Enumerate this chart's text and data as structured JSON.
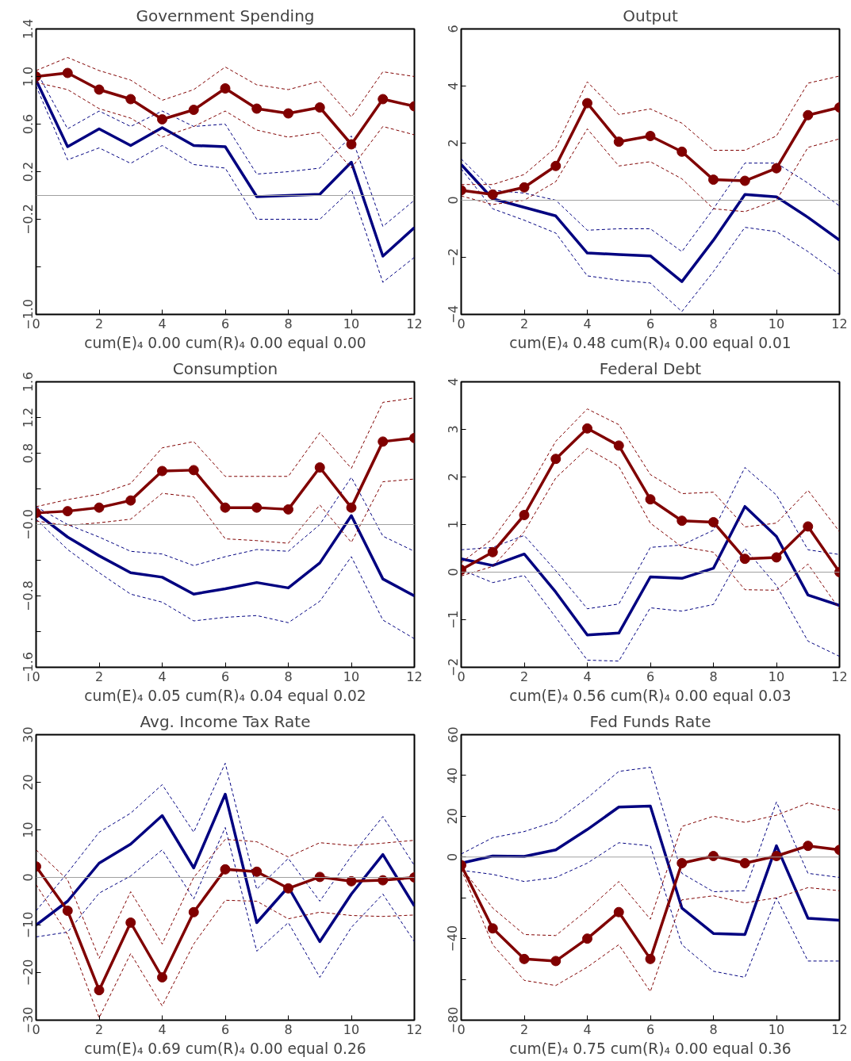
{
  "chart_data": [
    {
      "type": "line",
      "title": "Government Spending",
      "xlabel": "cum(E)₄ 0.00 cum(R)₄ 0.00 equal 0.00",
      "x": [
        0,
        1,
        2,
        3,
        4,
        5,
        6,
        7,
        8,
        9,
        10,
        11,
        12
      ],
      "xlim": [
        0,
        12
      ],
      "xticks": [
        0,
        2,
        4,
        6,
        8,
        10,
        12
      ],
      "ylim": [
        -1.0,
        1.4
      ],
      "yticks": [
        {
          "value": 1.4,
          "label": "1.4"
        },
        {
          "value": 1.0,
          "label": "1.0"
        },
        {
          "value": 0.6,
          "label": "0.6"
        },
        {
          "value": 0.2,
          "label": "0.2"
        },
        {
          "value": -0.2,
          "label": "−0.2"
        },
        {
          "value": -0.6,
          "label": null
        },
        {
          "value": -1.0,
          "label": "−1.0"
        }
      ],
      "grid": false,
      "line_style": "solid",
      "ref_lines": [
        {
          "axis": "y",
          "value": 0,
          "color": "#a0a0a0"
        }
      ],
      "series": [
        {
          "color": "#000080",
          "line_style": "dashed",
          "values": [
            0.92,
            0.3,
            0.4,
            0.27,
            0.42,
            0.26,
            0.23,
            -0.2,
            -0.2,
            -0.2,
            0.05,
            -0.73,
            -0.52
          ]
        },
        {
          "color": "#000080",
          "line_style": "dashed",
          "values": [
            1.05,
            0.56,
            0.71,
            0.58,
            0.71,
            0.58,
            0.6,
            0.18,
            0.2,
            0.23,
            0.5,
            -0.26,
            -0.04
          ]
        },
        {
          "color": "#000080",
          "marker": "none",
          "values": [
            0.97,
            0.41,
            0.56,
            0.42,
            0.57,
            0.42,
            0.41,
            -0.01,
            0.0,
            0.01,
            0.28,
            -0.51,
            -0.27
          ]
        },
        {
          "color": "#800000",
          "line_style": "dashed",
          "values": [
            0.95,
            0.89,
            0.73,
            0.65,
            0.49,
            0.58,
            0.71,
            0.55,
            0.49,
            0.53,
            0.23,
            0.58,
            0.51
          ]
        },
        {
          "color": "#800000",
          "line_style": "dashed",
          "values": [
            1.05,
            1.16,
            1.05,
            0.97,
            0.8,
            0.89,
            1.08,
            0.93,
            0.89,
            0.96,
            0.66,
            1.04,
            1.0
          ]
        },
        {
          "color": "#800000",
          "marker": "circle",
          "values": [
            1.0,
            1.03,
            0.89,
            0.81,
            0.64,
            0.72,
            0.9,
            0.73,
            0.69,
            0.74,
            0.43,
            0.81,
            0.75
          ]
        }
      ]
    },
    {
      "type": "line",
      "title": "Output",
      "xlabel": "cum(E)₄ 0.48 cum(R)₄ 0.00 equal 0.01",
      "x": [
        0,
        1,
        2,
        3,
        4,
        5,
        6,
        7,
        8,
        9,
        10,
        11,
        12
      ],
      "xlim": [
        0,
        12
      ],
      "xticks": [
        0,
        2,
        4,
        6,
        8,
        10,
        12
      ],
      "ylim": [
        -4,
        6
      ],
      "yticks": [
        {
          "value": 6,
          "label": "6"
        },
        {
          "value": 4,
          "label": "4"
        },
        {
          "value": 2,
          "label": "2"
        },
        {
          "value": 0,
          "label": "0"
        },
        {
          "value": -2,
          "label": "−2"
        },
        {
          "value": -4,
          "label": "−4"
        }
      ],
      "grid": false,
      "line_style": "solid",
      "ref_lines": [
        {
          "axis": "y",
          "value": 0,
          "color": "#a0a0a0"
        }
      ],
      "series": [
        {
          "color": "#000080",
          "line_style": "dashed",
          "values": [
            1.1,
            -0.3,
            -0.7,
            -1.15,
            -2.65,
            -2.8,
            -2.9,
            -3.9,
            -2.5,
            -0.95,
            -1.1,
            -1.8,
            -2.6
          ]
        },
        {
          "color": "#000080",
          "line_style": "dashed",
          "values": [
            1.45,
            0.35,
            0.25,
            0.0,
            -1.05,
            -1.0,
            -1.0,
            -1.8,
            -0.3,
            1.3,
            1.3,
            0.6,
            -0.2
          ]
        },
        {
          "color": "#000080",
          "marker": "none",
          "values": [
            1.25,
            0.05,
            -0.25,
            -0.55,
            -1.85,
            -1.9,
            -1.95,
            -2.85,
            -1.4,
            0.2,
            0.12,
            -0.6,
            -1.4
          ]
        },
        {
          "color": "#800000",
          "line_style": "dashed",
          "values": [
            0.15,
            -0.15,
            0.0,
            0.65,
            2.5,
            1.2,
            1.35,
            0.75,
            -0.3,
            -0.4,
            0.0,
            1.85,
            2.15
          ]
        },
        {
          "color": "#800000",
          "line_style": "dashed",
          "values": [
            0.55,
            0.55,
            0.9,
            1.85,
            4.15,
            3.0,
            3.2,
            2.7,
            1.75,
            1.75,
            2.25,
            4.1,
            4.35
          ]
        },
        {
          "color": "#800000",
          "marker": "circle",
          "values": [
            0.35,
            0.2,
            0.45,
            1.2,
            3.4,
            2.05,
            2.25,
            1.7,
            0.72,
            0.68,
            1.12,
            2.98,
            3.25
          ]
        }
      ]
    },
    {
      "type": "line",
      "title": "Consumption",
      "xlabel": "cum(E)₄ 0.05 cum(R)₄ 0.04 equal 0.02",
      "x": [
        0,
        1,
        2,
        3,
        4,
        5,
        6,
        7,
        8,
        9,
        10,
        11,
        12
      ],
      "xlim": [
        0,
        12
      ],
      "xticks": [
        0,
        2,
        4,
        6,
        8,
        10,
        12
      ],
      "ylim": [
        -1.6,
        1.6
      ],
      "yticks": [
        {
          "value": 1.6,
          "label": "1.6"
        },
        {
          "value": 1.2,
          "label": "1.2"
        },
        {
          "value": 0.8,
          "label": "0.8"
        },
        {
          "value": 0.4,
          "label": null
        },
        {
          "value": 0,
          "label": "−0.0"
        },
        {
          "value": -0.4,
          "label": null
        },
        {
          "value": -0.8,
          "label": "−0.8"
        },
        {
          "value": -1.2,
          "label": null
        },
        {
          "value": -1.6,
          "label": "−1.6"
        }
      ],
      "grid": false,
      "line_style": "solid",
      "ref_lines": [
        {
          "axis": "y",
          "value": 0,
          "color": "#a0a0a0"
        }
      ],
      "series": [
        {
          "color": "#000080",
          "line_style": "dashed",
          "values": [
            0.06,
            -0.28,
            -0.54,
            -0.78,
            -0.87,
            -1.08,
            -1.04,
            -1.02,
            -1.1,
            -0.86,
            -0.36,
            -1.07,
            -1.28
          ]
        },
        {
          "color": "#000080",
          "line_style": "dashed",
          "values": [
            0.2,
            0.0,
            -0.14,
            -0.3,
            -0.33,
            -0.46,
            -0.36,
            -0.28,
            -0.3,
            0.0,
            0.53,
            -0.13,
            -0.3
          ]
        },
        {
          "color": "#000080",
          "marker": "none",
          "values": [
            0.13,
            -0.14,
            -0.35,
            -0.54,
            -0.59,
            -0.78,
            -0.72,
            -0.65,
            -0.71,
            -0.43,
            0.1,
            -0.61,
            -0.8
          ]
        },
        {
          "color": "#800000",
          "line_style": "dashed",
          "values": [
            0.04,
            -0.01,
            0.02,
            0.06,
            0.35,
            0.31,
            -0.16,
            -0.18,
            -0.21,
            0.22,
            -0.2,
            0.48,
            0.51
          ]
        },
        {
          "color": "#800000",
          "line_style": "dashed",
          "values": [
            0.2,
            0.28,
            0.34,
            0.46,
            0.86,
            0.93,
            0.54,
            0.54,
            0.54,
            1.03,
            0.63,
            1.37,
            1.42
          ]
        },
        {
          "color": "#800000",
          "marker": "circle",
          "values": [
            0.13,
            0.15,
            0.19,
            0.27,
            0.6,
            0.61,
            0.19,
            0.19,
            0.17,
            0.64,
            0.19,
            0.93,
            0.97
          ]
        }
      ]
    },
    {
      "type": "line",
      "title": "Federal Debt",
      "xlabel": "cum(E)₄ 0.56 cum(R)₄ 0.00 equal 0.03",
      "x": [
        0,
        1,
        2,
        3,
        4,
        5,
        6,
        7,
        8,
        9,
        10,
        11,
        12
      ],
      "xlim": [
        0,
        12
      ],
      "xticks": [
        0,
        2,
        4,
        6,
        8,
        10,
        12
      ],
      "ylim": [
        -2,
        4
      ],
      "yticks": [
        {
          "value": 4,
          "label": "4"
        },
        {
          "value": 3,
          "label": "3"
        },
        {
          "value": 2,
          "label": "2"
        },
        {
          "value": 1,
          "label": "1"
        },
        {
          "value": 0,
          "label": "0"
        },
        {
          "value": -1,
          "label": "−1"
        },
        {
          "value": -2,
          "label": "−2"
        }
      ],
      "grid": false,
      "line_style": "solid",
      "ref_lines": [
        {
          "axis": "y",
          "value": 0,
          "color": "#a0a0a0"
        }
      ],
      "series": [
        {
          "color": "#000080",
          "line_style": "dashed",
          "values": [
            0.05,
            -0.22,
            -0.07,
            -0.95,
            -1.85,
            -1.87,
            -0.75,
            -0.82,
            -0.68,
            0.5,
            -0.28,
            -1.45,
            -1.77
          ]
        },
        {
          "color": "#000080",
          "line_style": "dashed",
          "values": [
            0.47,
            0.52,
            0.77,
            0.03,
            -0.77,
            -0.67,
            0.52,
            0.57,
            0.88,
            2.2,
            1.62,
            0.47,
            0.37
          ]
        },
        {
          "color": "#000080",
          "marker": "none",
          "values": [
            0.28,
            0.14,
            0.38,
            -0.42,
            -1.32,
            -1.28,
            -0.1,
            -0.13,
            0.08,
            1.38,
            0.75,
            -0.48,
            -0.7
          ]
        },
        {
          "color": "#800000",
          "line_style": "dashed",
          "values": [
            -0.08,
            0.12,
            0.85,
            1.98,
            2.6,
            2.22,
            1.03,
            0.53,
            0.42,
            -0.37,
            -0.38,
            0.17,
            -0.78
          ]
        },
        {
          "color": "#800000",
          "line_style": "dashed",
          "values": [
            0.2,
            0.7,
            1.6,
            2.75,
            3.43,
            3.1,
            2.05,
            1.65,
            1.68,
            0.95,
            1.03,
            1.72,
            0.85
          ]
        },
        {
          "color": "#800000",
          "marker": "circle",
          "values": [
            0.05,
            0.42,
            1.2,
            2.38,
            3.02,
            2.66,
            1.53,
            1.08,
            1.05,
            0.28,
            0.31,
            0.96,
            0.0
          ]
        }
      ]
    },
    {
      "type": "line",
      "title": "Avg. Income Tax Rate",
      "xlabel": "cum(E)₄ 0.69 cum(R)₄ 0.00 equal 0.26",
      "x": [
        0,
        1,
        2,
        3,
        4,
        5,
        6,
        7,
        8,
        9,
        10,
        11,
        12
      ],
      "xlim": [
        0,
        12
      ],
      "xticks": [
        0,
        2,
        4,
        6,
        8,
        10,
        12
      ],
      "ylim": [
        -30,
        30
      ],
      "yticks": [
        {
          "value": 30,
          "label": "30"
        },
        {
          "value": 20,
          "label": "20"
        },
        {
          "value": 10,
          "label": "10"
        },
        {
          "value": 0,
          "label": "0"
        },
        {
          "value": -10,
          "label": "−10"
        },
        {
          "value": -20,
          "label": "−20"
        },
        {
          "value": -30,
          "label": "−30"
        }
      ],
      "grid": false,
      "line_style": "solid",
      "ref_lines": [
        {
          "axis": "y",
          "value": 0,
          "color": "#a0a0a0"
        }
      ],
      "series": [
        {
          "color": "#000080",
          "line_style": "dashed",
          "values": [
            -12.5,
            -11.5,
            -3.3,
            0.3,
            5.8,
            -4.5,
            10.5,
            -15.5,
            -9.5,
            -21,
            -10.5,
            -3.5,
            -13.5
          ]
        },
        {
          "color": "#000080",
          "line_style": "dashed",
          "values": [
            -7,
            1,
            9.5,
            13.5,
            19.5,
            9.5,
            24,
            -2.5,
            4,
            -5,
            4.5,
            12.8,
            2.5
          ]
        },
        {
          "color": "#000080",
          "marker": "none",
          "values": [
            -10,
            -5,
            3,
            7,
            13,
            2,
            17.5,
            -9.5,
            -2,
            -13.5,
            -3.5,
            4.8,
            -6
          ]
        },
        {
          "color": "#800000",
          "line_style": "dashed",
          "values": [
            -1.5,
            -12,
            -29.5,
            -16,
            -27,
            -14,
            -4.8,
            -5,
            -8.7,
            -7.3,
            -8,
            -8.2,
            -7.9
          ]
        },
        {
          "color": "#800000",
          "line_style": "dashed",
          "values": [
            5.8,
            -0.5,
            -17,
            -3,
            -14,
            0,
            8,
            7.5,
            4.3,
            7.3,
            6.7,
            7.2,
            7.8
          ]
        },
        {
          "color": "#800000",
          "marker": "circle",
          "values": [
            2.3,
            -7,
            -23.7,
            -9.5,
            -21,
            -7.3,
            1.7,
            1.2,
            -2.3,
            0.1,
            -0.8,
            -0.6,
            0.0
          ]
        }
      ]
    },
    {
      "type": "line",
      "title": "Fed Funds Rate",
      "xlabel": "cum(E)₄ 0.75 cum(R)₄ 0.00 equal 0.36",
      "x": [
        0,
        1,
        2,
        3,
        4,
        5,
        6,
        7,
        8,
        9,
        10,
        11,
        12
      ],
      "xlim": [
        0,
        12
      ],
      "xticks": [
        0,
        2,
        4,
        6,
        8,
        10,
        12
      ],
      "ylim": [
        -80,
        60
      ],
      "yticks": [
        {
          "value": 60,
          "label": "60"
        },
        {
          "value": 40,
          "label": "40"
        },
        {
          "value": 20,
          "label": "20"
        },
        {
          "value": 0,
          "label": "0"
        },
        {
          "value": -20,
          "label": null
        },
        {
          "value": -40,
          "label": "−40"
        },
        {
          "value": -60,
          "label": null
        },
        {
          "value": -80,
          "label": "−80"
        }
      ],
      "grid": false,
      "line_style": "solid",
      "ref_lines": [
        {
          "axis": "y",
          "value": 0,
          "color": "#a0a0a0"
        }
      ],
      "series": [
        {
          "color": "#000080",
          "line_style": "dashed",
          "values": [
            -6.5,
            -8.5,
            -12,
            -10,
            -3,
            7,
            5.5,
            -43,
            -56,
            -59,
            -20,
            -51,
            -51
          ]
        },
        {
          "color": "#000080",
          "line_style": "dashed",
          "values": [
            1.5,
            9.5,
            12.5,
            17.5,
            29,
            42,
            44,
            -8,
            -17,
            -16.5,
            27,
            -8,
            -10
          ]
        },
        {
          "color": "#000080",
          "marker": "none",
          "values": [
            -3,
            0.5,
            0.3,
            3.5,
            13.5,
            24.5,
            25,
            -25,
            -37.5,
            -38,
            5.5,
            -30,
            -31
          ]
        },
        {
          "color": "#800000",
          "line_style": "dashed",
          "values": [
            -6,
            -43,
            -60.5,
            -63,
            -54,
            -43,
            -66,
            -21,
            -19,
            -22.5,
            -20,
            -15,
            -16.5
          ]
        },
        {
          "color": "#800000",
          "line_style": "dashed",
          "values": [
            -5,
            -25,
            -38,
            -38.5,
            -26,
            -12,
            -30.5,
            15,
            20,
            17,
            20.5,
            26.5,
            23
          ]
        },
        {
          "color": "#800000",
          "marker": "circle",
          "values": [
            -4,
            -35,
            -50,
            -51,
            -40,
            -27,
            -50,
            -3,
            0.5,
            -3,
            0.5,
            5.5,
            3.5
          ]
        }
      ]
    }
  ]
}
